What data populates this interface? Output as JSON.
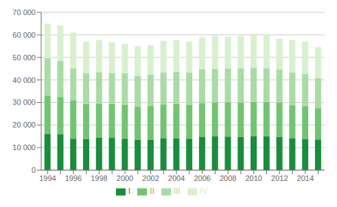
{
  "chart_data": {
    "type": "bar",
    "stacked": true,
    "grid": true,
    "legend": "bottom",
    "categories": [
      "1994",
      null,
      "1996",
      null,
      "1998",
      null,
      "2000",
      null,
      "2002",
      null,
      "2004",
      null,
      "2006",
      null,
      "2008",
      null,
      "2010",
      null,
      "2012",
      null,
      "2014",
      null
    ],
    "series": [
      {
        "name": "I",
        "color": "#1a8c3e",
        "values": [
          16100,
          16000,
          14000,
          13800,
          14500,
          14500,
          14000,
          13500,
          13500,
          14200,
          14200,
          14000,
          14800,
          15000,
          14900,
          14800,
          15100,
          15000,
          14800,
          14200,
          13900,
          13400
        ]
      },
      {
        "name": "II",
        "color": "#72c472",
        "values": [
          17000,
          16500,
          17000,
          15500,
          15000,
          14800,
          15000,
          14500,
          14800,
          15000,
          15200,
          15000,
          15000,
          15000,
          15200,
          15100,
          15200,
          15200,
          15100,
          14700,
          14500,
          14000
        ]
      },
      {
        "name": "III",
        "color": "#aadba6",
        "values": [
          16500,
          16000,
          14200,
          13700,
          14000,
          13800,
          14000,
          13700,
          14000,
          14200,
          14300,
          14200,
          15000,
          15000,
          15000,
          15200,
          15200,
          15000,
          14800,
          14500,
          14200,
          13500
        ]
      },
      {
        "name": "IV",
        "color": "#d8f0d0",
        "values": [
          15400,
          15800,
          15800,
          14000,
          14200,
          13600,
          13000,
          13300,
          13200,
          14000,
          14000,
          13800,
          14200,
          14500,
          14000,
          14500,
          15000,
          14500,
          13700,
          14300,
          14400,
          13700
        ]
      }
    ],
    "ylim": [
      0,
      70000
    ],
    "yticks": [
      0,
      {
        "value": 10000,
        "label": "10 000"
      },
      {
        "value": 20000,
        "label": "20 000"
      },
      {
        "value": 30000,
        "label": "30 000"
      },
      {
        "value": 40000,
        "label": "40 000"
      },
      {
        "value": 50000,
        "label": "50 000"
      },
      {
        "value": 60000,
        "label": "60 000"
      },
      {
        "value": 70000,
        "label": "70 000"
      }
    ]
  }
}
